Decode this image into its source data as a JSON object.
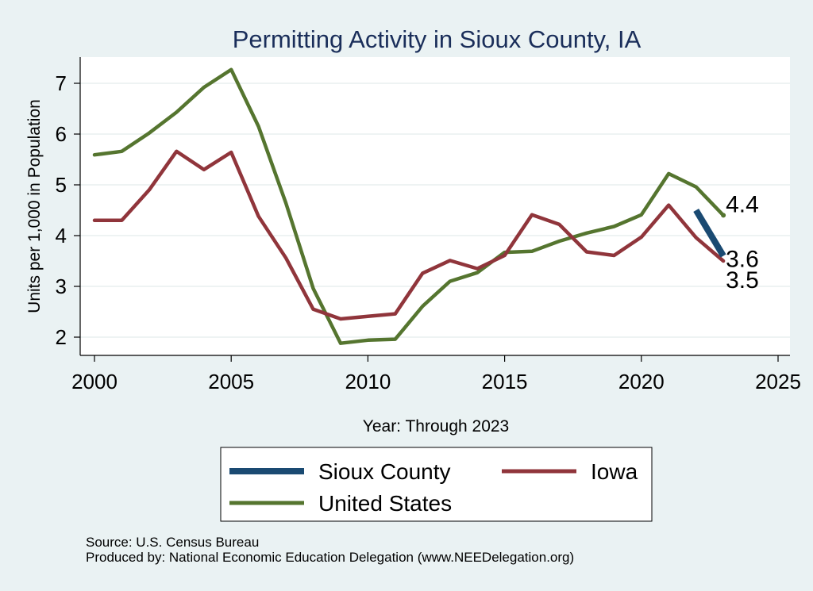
{
  "chart_data": {
    "type": "line",
    "title": "Permitting Activity in Sioux County, IA",
    "xlabel": "Year: Through 2023",
    "ylabel": "Units per 1,000 in Population",
    "xlim": [
      2000,
      2025
    ],
    "ylim": [
      1.8,
      7.5
    ],
    "xticks": [
      2000,
      2005,
      2010,
      2015,
      2020,
      2025
    ],
    "yticks": [
      2,
      3,
      4,
      5,
      6,
      7
    ],
    "grid": true,
    "legend_position": "bottom",
    "series": [
      {
        "name": "Sioux County",
        "color": "#1a4a72",
        "x": [
          2022,
          2023
        ],
        "values": [
          4.5,
          3.6
        ],
        "end_label": "3.6"
      },
      {
        "name": "Iowa",
        "color": "#90353b",
        "x": [
          2000,
          2001,
          2002,
          2003,
          2004,
          2005,
          2006,
          2007,
          2008,
          2009,
          2010,
          2011,
          2012,
          2013,
          2014,
          2015,
          2016,
          2017,
          2018,
          2019,
          2020,
          2021,
          2022,
          2023
        ],
        "values": [
          4.3,
          4.3,
          4.9,
          5.66,
          5.3,
          5.64,
          4.38,
          3.56,
          2.55,
          2.36,
          2.41,
          2.46,
          3.26,
          3.51,
          3.35,
          3.61,
          4.41,
          4.22,
          3.68,
          3.61,
          3.97,
          4.6,
          3.96,
          3.5
        ],
        "end_label": "3.5"
      },
      {
        "name": "United States",
        "color": "#55752f",
        "x": [
          2000,
          2001,
          2002,
          2003,
          2004,
          2005,
          2006,
          2007,
          2008,
          2009,
          2010,
          2011,
          2012,
          2013,
          2014,
          2015,
          2016,
          2017,
          2018,
          2019,
          2020,
          2021,
          2022,
          2023
        ],
        "values": [
          5.59,
          5.66,
          6.02,
          6.43,
          6.92,
          7.27,
          6.15,
          4.64,
          2.96,
          1.88,
          1.94,
          1.96,
          2.61,
          3.1,
          3.27,
          3.67,
          3.69,
          3.89,
          4.05,
          4.18,
          4.41,
          5.22,
          4.96,
          4.4
        ],
        "end_label": "4.4"
      }
    ]
  },
  "source_text": "Source: U.S. Census Bureau",
  "produced_text": "Produced by: National Economic Education Delegation (www.NEEDelegation.org)"
}
